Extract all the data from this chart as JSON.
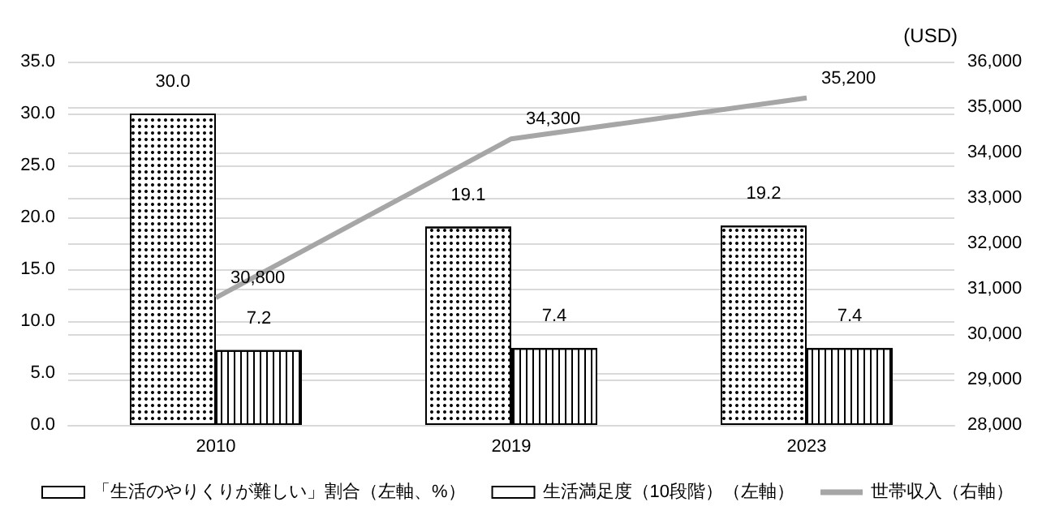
{
  "chart_data": {
    "type": "bar",
    "y2label": "(USD)",
    "categories": [
      "2010",
      "2019",
      "2023"
    ],
    "series": [
      {
        "name": "「生活のやりくりが難しい」割合（左軸、%）",
        "color": "#ffffff",
        "values": [
          30.0,
          19.1,
          19.2
        ],
        "value_labels": [
          "30.0",
          "19.1",
          "19.2"
        ]
      },
      {
        "name": "生活満足度（10段階）（左軸）",
        "color": "#ffffff",
        "values": [
          7.2,
          7.4,
          7.4
        ],
        "value_labels": [
          "7.2",
          "7.4",
          "7.4"
        ]
      },
      {
        "name": "世帯収入（右軸）",
        "type": "line",
        "axis": "y2",
        "color": "#a6a6a6",
        "values": [
          30800,
          34300,
          35200
        ],
        "value_labels": [
          "30,800",
          "34,300",
          "35,200"
        ]
      }
    ],
    "ylim": [
      0,
      35
    ],
    "yticks": [
      {
        "value": 0,
        "label": "0.0"
      },
      {
        "value": 5,
        "label": "5.0"
      },
      {
        "value": 10,
        "label": "10.0"
      },
      {
        "value": 15,
        "label": "15.0"
      },
      {
        "value": 20,
        "label": "20.0"
      },
      {
        "value": 25,
        "label": "25.0"
      },
      {
        "value": 30,
        "label": "30.0"
      },
      {
        "value": 35,
        "label": "35.0"
      }
    ],
    "y2lim": [
      28000,
      36000
    ],
    "y2ticks": [
      {
        "value": 28000,
        "label": "28,000"
      },
      {
        "value": 29000,
        "label": "29,000"
      },
      {
        "value": 30000,
        "label": "30,000"
      },
      {
        "value": 31000,
        "label": "31,000"
      },
      {
        "value": 32000,
        "label": "32,000"
      },
      {
        "value": 33000,
        "label": "33,000"
      },
      {
        "value": 34000,
        "label": "34,000"
      },
      {
        "value": 35000,
        "label": "35,000"
      },
      {
        "value": 36000,
        "label": "36,000"
      }
    ],
    "grid": "y",
    "legend": "bottom",
    "marker": "none"
  }
}
